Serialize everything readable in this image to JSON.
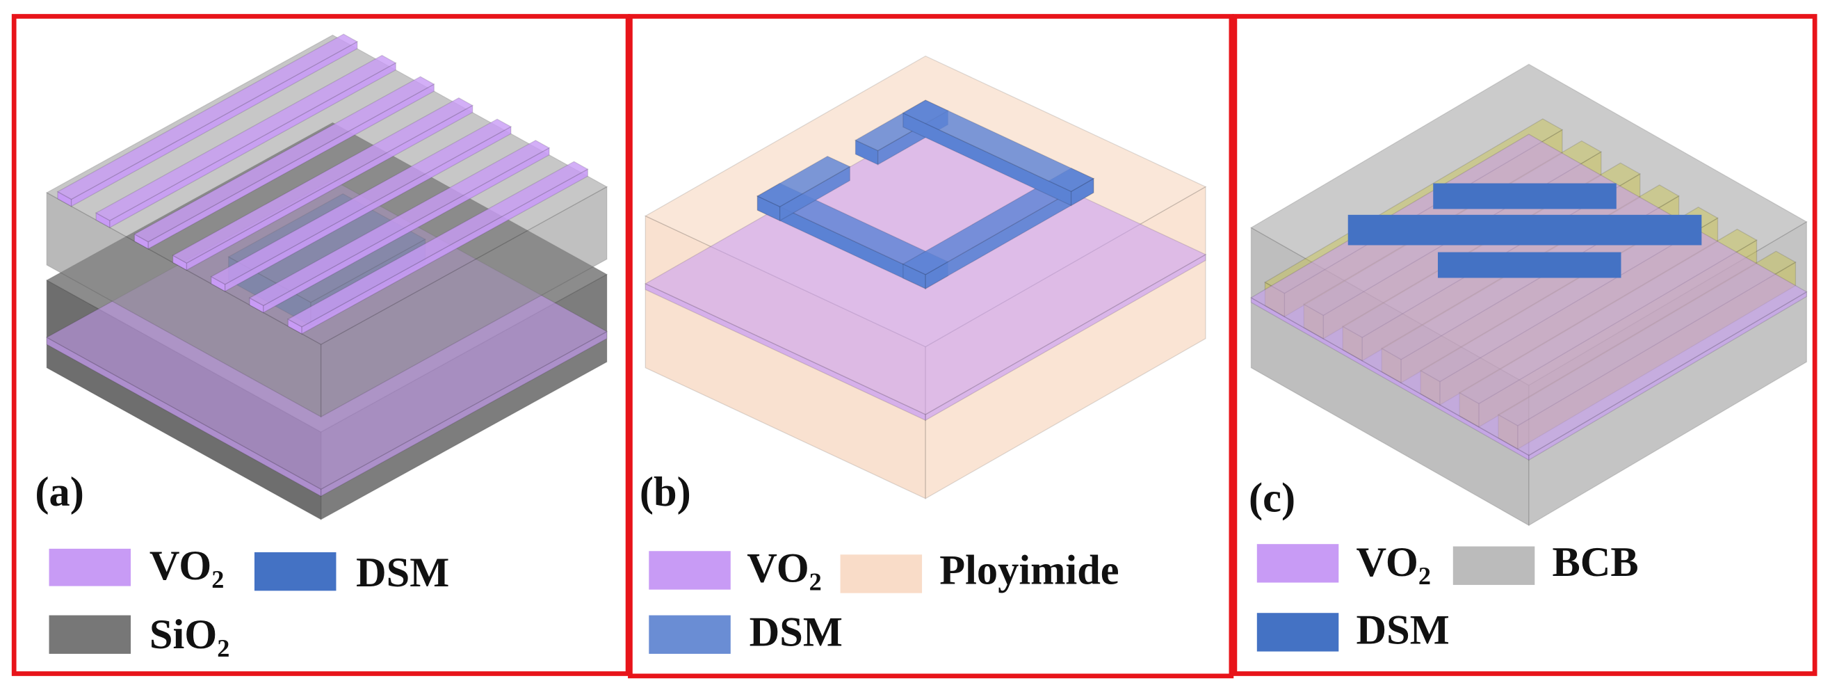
{
  "panels": [
    {
      "label": "(a)",
      "legend": [
        {
          "label": "VO₂"
        },
        {
          "label": "DSM"
        },
        {
          "label": "SiO₂"
        }
      ]
    },
    {
      "label": "(b)",
      "legend": [
        {
          "label": "VO₂"
        },
        {
          "label": "Ployimide"
        },
        {
          "label": "DSM"
        }
      ]
    },
    {
      "label": "(c)",
      "legend": [
        {
          "label": "VO₂"
        },
        {
          "label": "BCB"
        },
        {
          "label": "DSM"
        }
      ]
    }
  ]
}
